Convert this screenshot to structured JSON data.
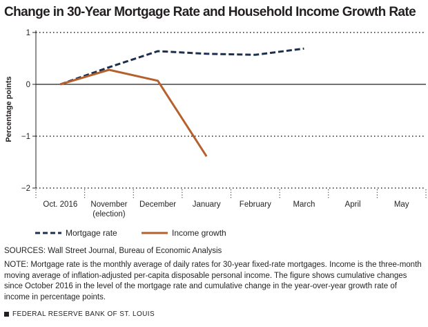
{
  "chart_data": {
    "type": "line",
    "title": "Change in 30-Year Mortgage Rate and Household Income Growth Rate",
    "ylabel": "Percentage points",
    "xlabel": "",
    "categories": [
      "Oct. 2016",
      "November (election)",
      "December",
      "January",
      "February",
      "March",
      "April",
      "May"
    ],
    "ylim": [
      -2,
      1
    ],
    "yticks": [
      1,
      0,
      -1,
      -2
    ],
    "ytick_labels": [
      "1",
      "0",
      "−1",
      "−2"
    ],
    "series": [
      {
        "name": "Mortgage rate",
        "style": "dashed",
        "color": "#1c2f4d",
        "values": [
          0,
          0.33,
          0.64,
          0.59,
          0.57,
          0.69,
          null,
          null
        ]
      },
      {
        "name": "Income growth",
        "style": "solid",
        "color": "#b5602d",
        "values": [
          0,
          0.28,
          0.07,
          -1.39,
          null,
          null,
          null,
          null
        ]
      }
    ],
    "grid": "dotted horizontal",
    "legend_position": "bottom-left"
  },
  "sources": "SOURCES: Wall Street Journal, Bureau of Economic Analysis",
  "note": "NOTE: Mortgage rate is the monthly average of daily rates for 30-year fixed-rate mortgages. Income is the three-month moving average of inflation-adjusted per-capita disposable personal income. The figure shows cumulative changes since October 2016 in the level of the mortgage rate and cumulative change in the year-over-year growth rate of income in percentage points.",
  "footer": "FEDERAL RESERVE BANK OF ST. LOUIS"
}
